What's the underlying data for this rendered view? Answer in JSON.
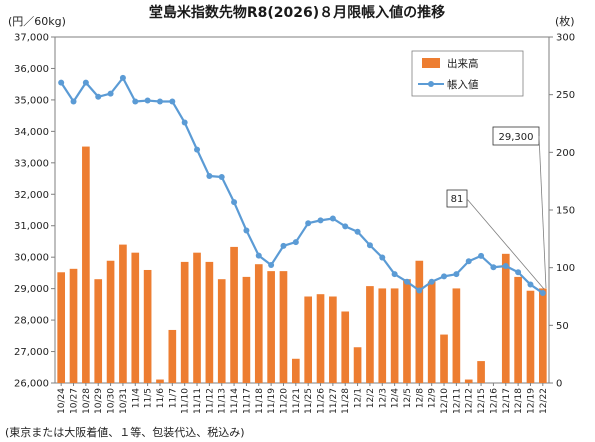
{
  "chart_data": {
    "type": "bar+line",
    "title": "堂島米指数先物R8(2026)８月限帳入値の推移",
    "left_axis_unit": "(円／60kg)",
    "right_axis_unit": "(枚)",
    "footnote": "(東京または大阪着値、１等、包装代込、税込み)",
    "y_left": {
      "min": 26000,
      "max": 37000,
      "step": 1000,
      "tick_labels": [
        "26,000",
        "27,000",
        "28,000",
        "29,000",
        "30,000",
        "31,000",
        "32,000",
        "33,000",
        "34,000",
        "35,000",
        "36,000",
        "37,000"
      ]
    },
    "y_right": {
      "min": 0,
      "max": 300,
      "step": 50,
      "tick_labels": [
        "0",
        "50",
        "100",
        "150",
        "200",
        "250",
        "300"
      ]
    },
    "categories": [
      "10/24",
      "10/27",
      "10/28",
      "10/29",
      "10/30",
      "10/31",
      "11/4",
      "11/5",
      "11/6",
      "11/7",
      "11/10",
      "11/11",
      "11/12",
      "11/13",
      "11/14",
      "11/17",
      "11/18",
      "11/19",
      "11/20",
      "11/21",
      "11/25",
      "11/26",
      "11/27",
      "11/28",
      "12/1",
      "12/2",
      "12/3",
      "12/4",
      "12/5",
      "12/8",
      "12/9",
      "12/10",
      "12/11",
      "12/12",
      "12/15",
      "12/16",
      "12/17",
      "12/18",
      "12/19",
      "12/22"
    ],
    "series": [
      {
        "name": "出来高",
        "axis": "right",
        "color": "#ED7D31",
        "values": [
          96,
          99,
          205,
          90,
          106,
          120,
          113,
          98,
          3,
          46,
          105,
          113,
          105,
          90,
          118,
          92,
          103,
          97,
          97,
          21,
          75,
          77,
          75,
          62,
          31,
          84,
          82,
          82,
          90,
          106,
          88,
          42,
          82,
          3,
          19,
          0,
          112,
          92,
          80,
          82
        ]
      },
      {
        "name": "帳入値",
        "axis": "left",
        "color": "#5B9BD5",
        "values": [
          35550,
          34950,
          35550,
          35100,
          35200,
          35700,
          34950,
          34980,
          34950,
          34950,
          34280,
          33420,
          32580,
          32550,
          31750,
          30850,
          30050,
          29750,
          30360,
          30480,
          31080,
          31170,
          31230,
          30980,
          30810,
          30380,
          29990,
          29460,
          29220,
          28940,
          29220,
          29390,
          29460,
          29870,
          30040,
          29680,
          29720,
          29520,
          29130,
          28860
        ]
      }
    ],
    "callouts": [
      {
        "text": "29,300"
      },
      {
        "text": "81"
      }
    ],
    "legend_position": "top-right",
    "grid": false
  }
}
